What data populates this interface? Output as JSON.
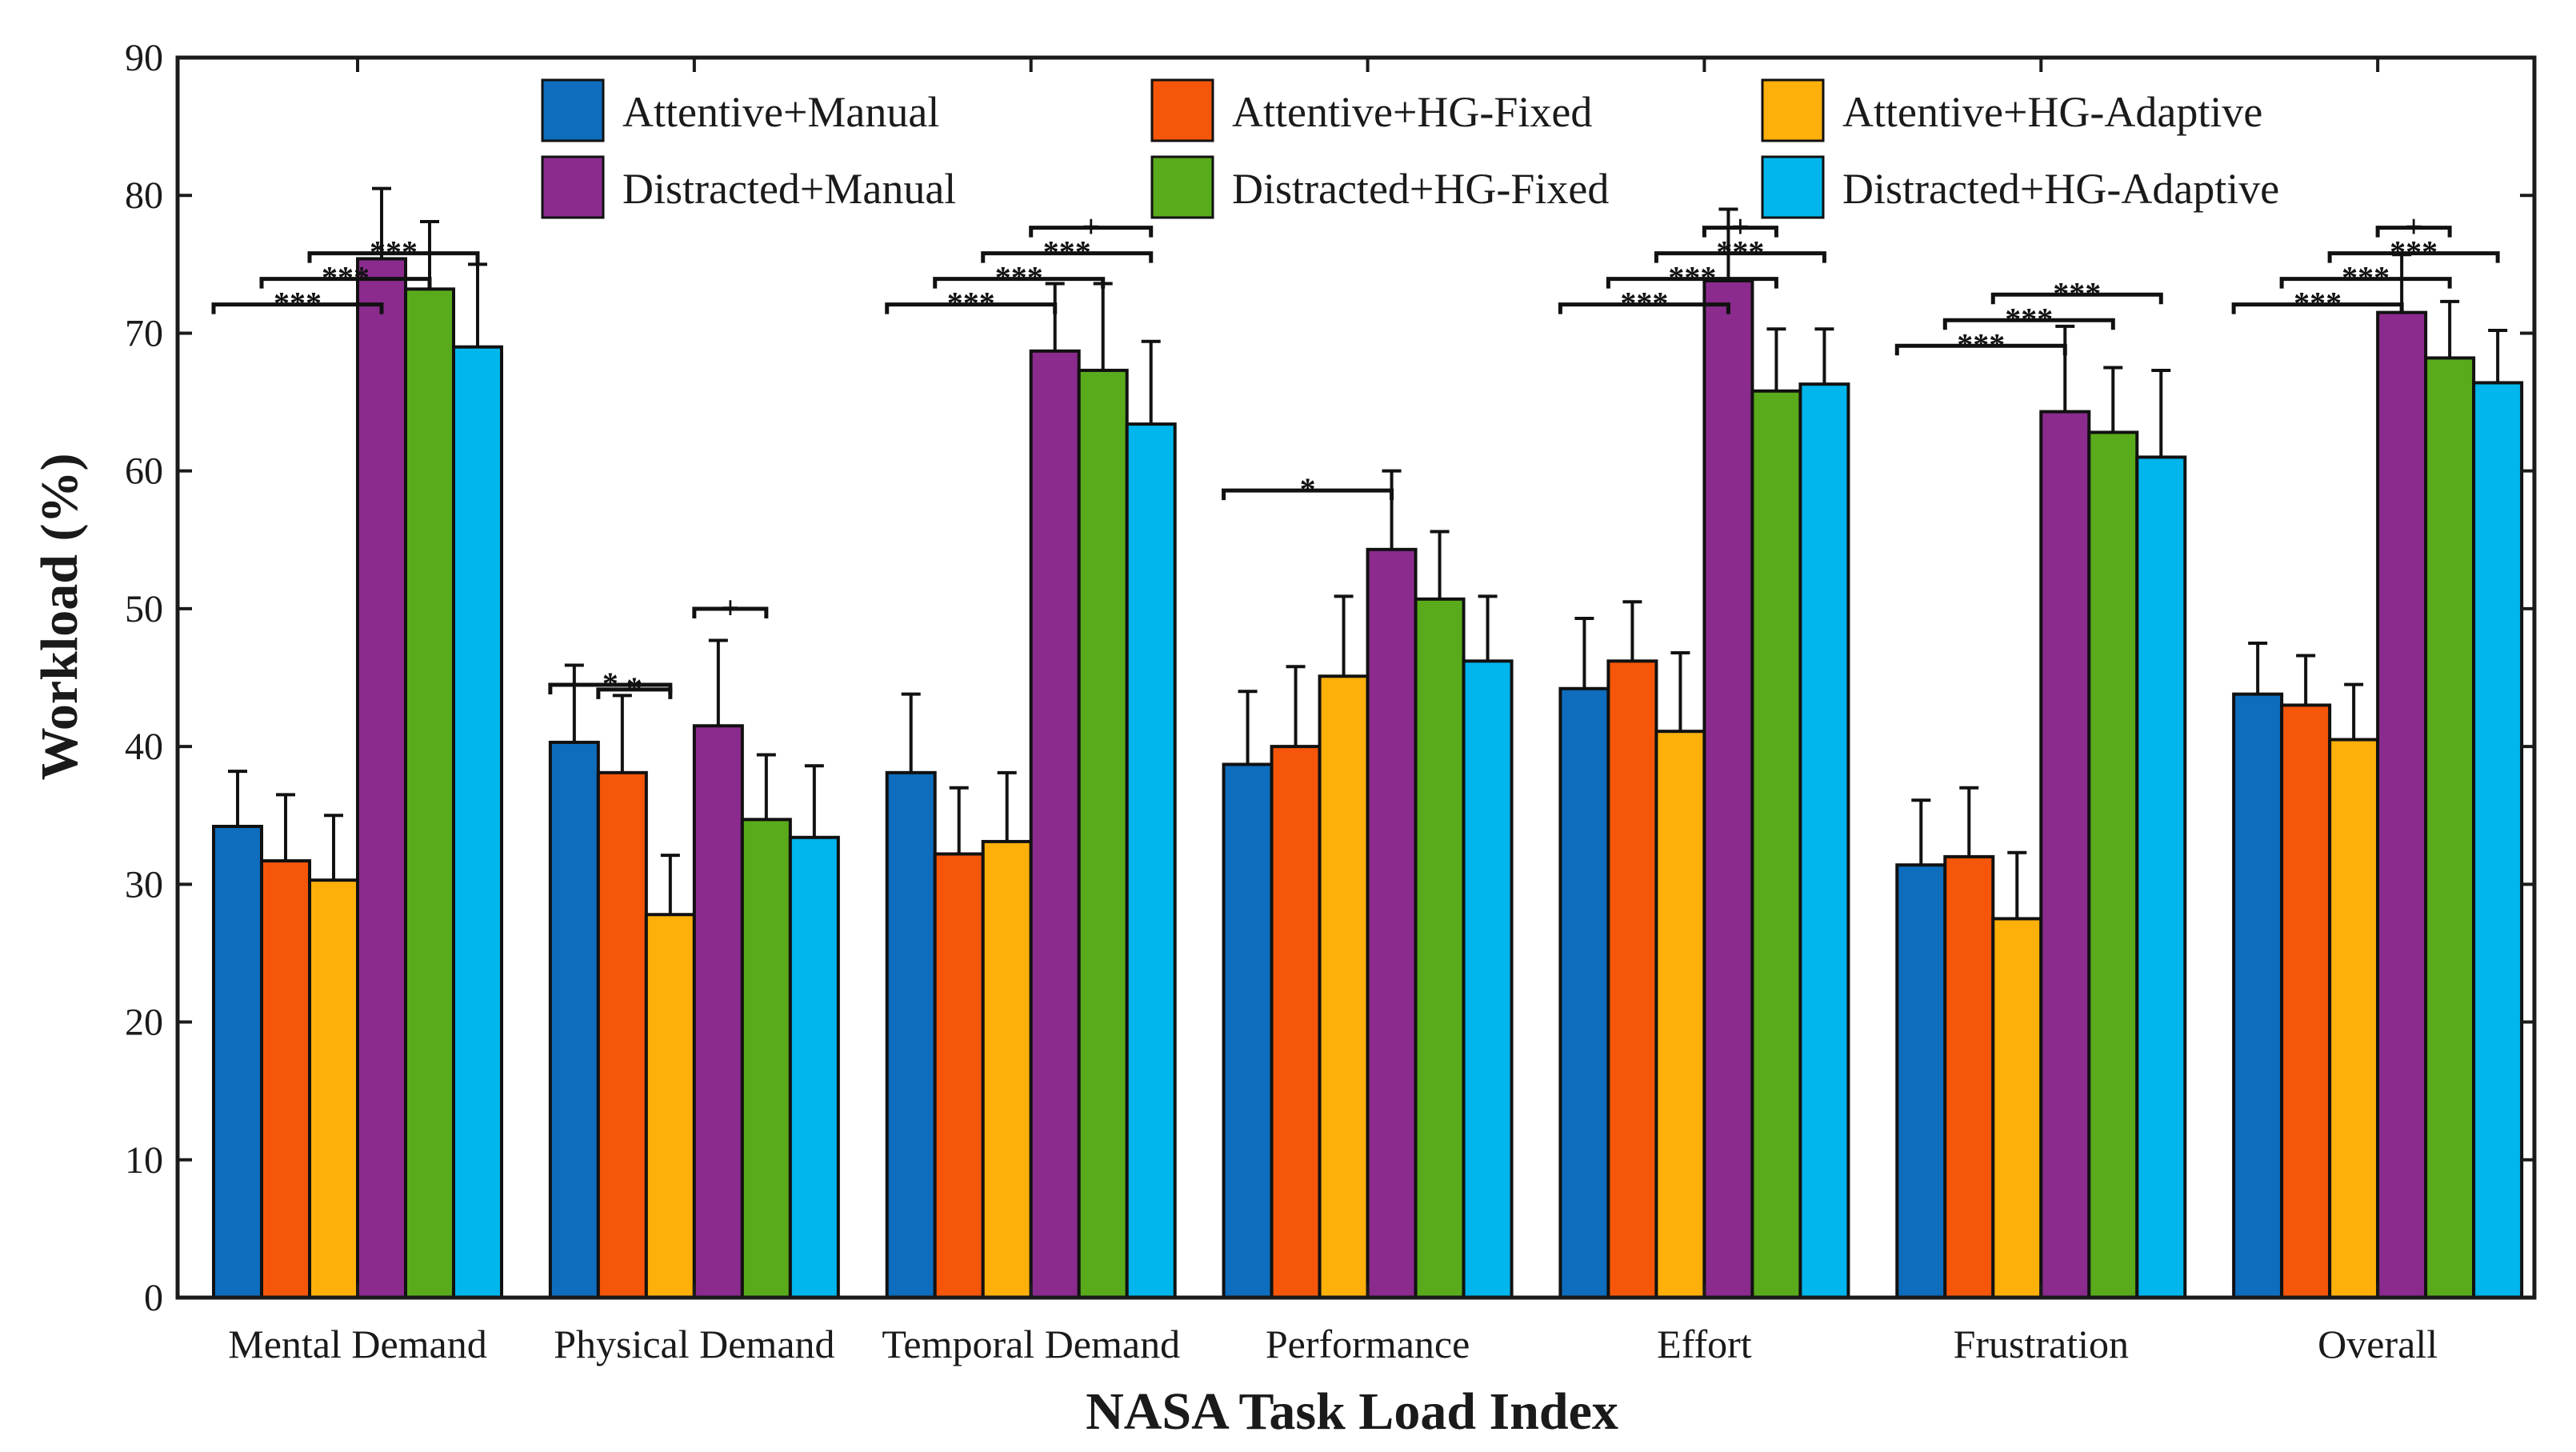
{
  "chart_data": {
    "type": "bar",
    "title": "",
    "xlabel": "NASA Task Load Index",
    "ylabel": "Workload (%)",
    "ylim": [
      0,
      90
    ],
    "yticks": [
      0,
      10,
      20,
      30,
      40,
      50,
      60,
      70,
      80,
      90
    ],
    "grid": false,
    "legend_position": "top",
    "categories": [
      "Mental Demand",
      "Physical Demand",
      "Temporal Demand",
      "Performance",
      "Effort",
      "Frustration",
      "Overall"
    ],
    "series": [
      {
        "name": "Attentive+Manual",
        "color": "#0e6dbd",
        "values": [
          34.2,
          40.3,
          38.1,
          38.7,
          44.2,
          31.4,
          43.8
        ],
        "err": [
          4.0,
          5.6,
          5.7,
          5.3,
          5.1,
          4.7,
          3.7
        ]
      },
      {
        "name": "Attentive+HG-Fixed",
        "color": "#f5560a",
        "values": [
          31.7,
          38.1,
          32.2,
          40.0,
          46.2,
          32.0,
          43.0
        ],
        "err": [
          4.8,
          5.6,
          4.8,
          5.8,
          4.3,
          5.0,
          3.6
        ]
      },
      {
        "name": "Attentive+HG-Adaptive",
        "color": "#fdb00a",
        "values": [
          30.3,
          27.8,
          33.1,
          45.1,
          41.1,
          27.5,
          40.5
        ],
        "err": [
          4.7,
          4.3,
          5.0,
          5.8,
          5.7,
          4.8,
          4.0
        ]
      },
      {
        "name": "Distracted+Manual",
        "color": "#8b2b8e",
        "values": [
          75.4,
          41.5,
          68.7,
          54.3,
          73.8,
          64.3,
          71.5
        ],
        "err": [
          5.1,
          6.2,
          4.9,
          5.7,
          5.2,
          6.2,
          4.2
        ]
      },
      {
        "name": "Distracted+HG-Fixed",
        "color": "#5aab1c",
        "values": [
          73.2,
          34.7,
          67.3,
          50.7,
          65.8,
          62.8,
          68.2
        ],
        "err": [
          4.9,
          4.7,
          6.3,
          4.9,
          4.5,
          4.7,
          4.1
        ]
      },
      {
        "name": "Distracted+HG-Adaptive",
        "color": "#00b6ec",
        "values": [
          69.0,
          33.4,
          63.4,
          46.2,
          66.3,
          61.0,
          66.4
        ],
        "err": [
          6.0,
          5.2,
          6.0,
          4.7,
          4.0,
          6.3,
          3.8
        ]
      }
    ],
    "significance": [
      {
        "category": 0,
        "from": 0,
        "to": 3,
        "label": "***"
      },
      {
        "category": 0,
        "from": 1,
        "to": 4,
        "label": "***"
      },
      {
        "category": 0,
        "from": 2,
        "to": 5,
        "label": "***"
      },
      {
        "category": 1,
        "from": 0,
        "to": 2,
        "label": "*"
      },
      {
        "category": 1,
        "from": 1,
        "to": 2,
        "label": "*"
      },
      {
        "category": 1,
        "from": 3,
        "to": 4,
        "label": "+"
      },
      {
        "category": 2,
        "from": 0,
        "to": 3,
        "label": "***"
      },
      {
        "category": 2,
        "from": 1,
        "to": 4,
        "label": "***"
      },
      {
        "category": 2,
        "from": 2,
        "to": 5,
        "label": "***"
      },
      {
        "category": 2,
        "from": 3,
        "to": 5,
        "label": "+"
      },
      {
        "category": 3,
        "from": 0,
        "to": 3,
        "label": "*"
      },
      {
        "category": 4,
        "from": 0,
        "to": 3,
        "label": "***"
      },
      {
        "category": 4,
        "from": 1,
        "to": 4,
        "label": "***"
      },
      {
        "category": 4,
        "from": 2,
        "to": 5,
        "label": "***"
      },
      {
        "category": 4,
        "from": 3,
        "to": 4,
        "label": "+"
      },
      {
        "category": 5,
        "from": 0,
        "to": 3,
        "label": "***"
      },
      {
        "category": 5,
        "from": 1,
        "to": 4,
        "label": "***"
      },
      {
        "category": 5,
        "from": 2,
        "to": 5,
        "label": "***"
      },
      {
        "category": 6,
        "from": 0,
        "to": 3,
        "label": "***"
      },
      {
        "category": 6,
        "from": 1,
        "to": 4,
        "label": "***"
      },
      {
        "category": 6,
        "from": 2,
        "to": 5,
        "label": "***"
      },
      {
        "category": 6,
        "from": 3,
        "to": 4,
        "label": "+"
      }
    ]
  }
}
